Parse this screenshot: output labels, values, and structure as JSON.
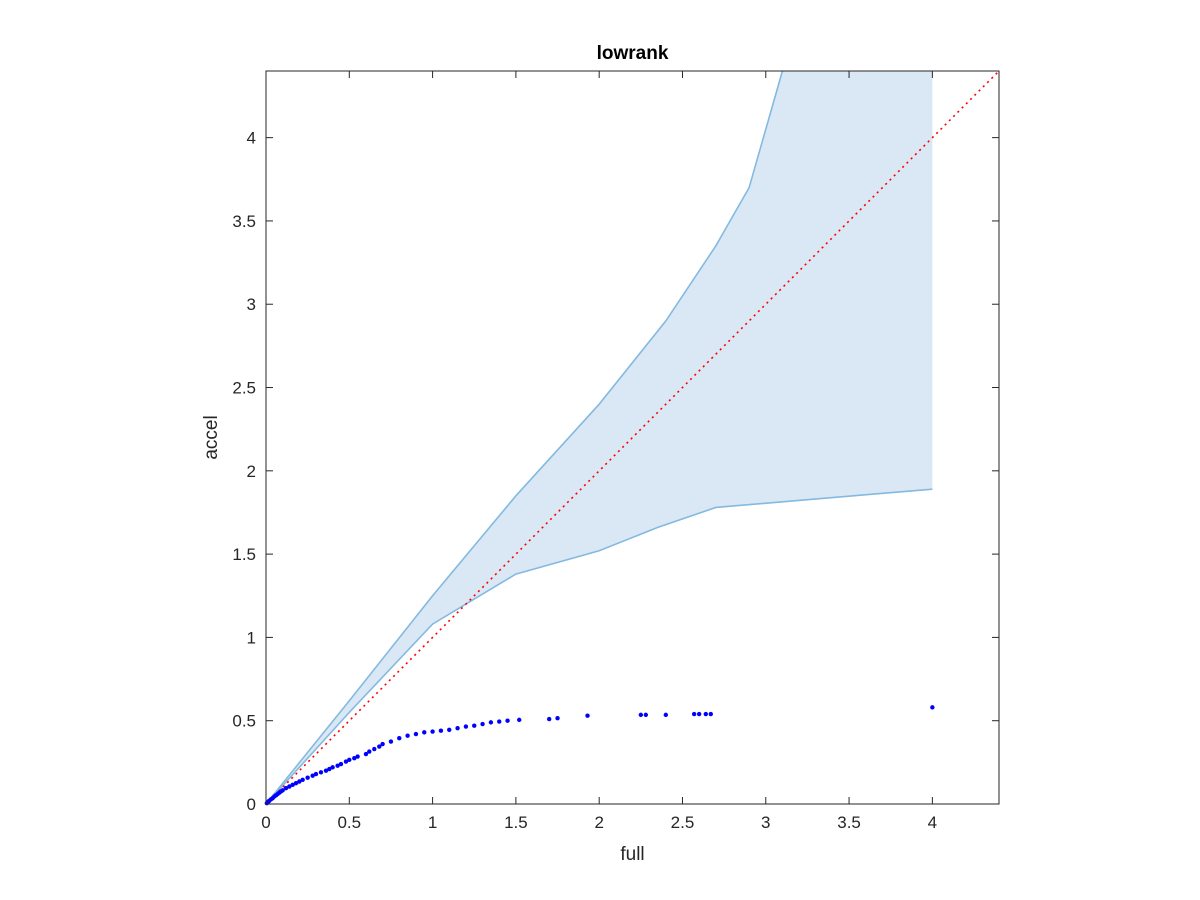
{
  "chart_data": {
    "type": "scatter",
    "title": "lowrank",
    "xlabel": "full",
    "ylabel": "accel",
    "xlim": [
      0,
      4.4
    ],
    "ylim": [
      0,
      4.4
    ],
    "xticks": [
      0,
      0.5,
      1,
      1.5,
      2,
      2.5,
      3,
      3.5,
      4
    ],
    "yticks": [
      0,
      0.5,
      1,
      1.5,
      2,
      2.5,
      3,
      3.5,
      4
    ],
    "grid": false,
    "box": true,
    "band": {
      "color": "#d9e8f4",
      "edge_color": "#84b9e0",
      "upper": [
        [
          0,
          0
        ],
        [
          0.5,
          0.62
        ],
        [
          1,
          1.25
        ],
        [
          1.5,
          1.85
        ],
        [
          2,
          2.4
        ],
        [
          2.4,
          2.9
        ],
        [
          2.7,
          3.35
        ],
        [
          2.9,
          3.7
        ],
        [
          3.1,
          4.4
        ]
      ],
      "lower": [
        [
          0,
          0
        ],
        [
          0.5,
          0.55
        ],
        [
          1,
          1.08
        ],
        [
          1.5,
          1.38
        ],
        [
          2,
          1.52
        ],
        [
          2.35,
          1.66
        ],
        [
          2.7,
          1.78
        ],
        [
          4,
          1.89
        ]
      ],
      "right_edge_x": 4
    },
    "reference_line": {
      "x": [
        0,
        4.4
      ],
      "y": [
        0,
        4.4
      ],
      "color": "#ff0000",
      "style": "dotted"
    },
    "series": [
      {
        "color": "#0000ff",
        "points": [
          [
            0.005,
            0.005
          ],
          [
            0.01,
            0.01
          ],
          [
            0.015,
            0.015
          ],
          [
            0.02,
            0.02
          ],
          [
            0.03,
            0.028
          ],
          [
            0.04,
            0.035
          ],
          [
            0.05,
            0.045
          ],
          [
            0.06,
            0.052
          ],
          [
            0.07,
            0.06
          ],
          [
            0.08,
            0.068
          ],
          [
            0.09,
            0.075
          ],
          [
            0.1,
            0.082
          ],
          [
            0.12,
            0.095
          ],
          [
            0.14,
            0.105
          ],
          [
            0.16,
            0.115
          ],
          [
            0.18,
            0.125
          ],
          [
            0.2,
            0.135
          ],
          [
            0.22,
            0.145
          ],
          [
            0.25,
            0.158
          ],
          [
            0.28,
            0.17
          ],
          [
            0.3,
            0.18
          ],
          [
            0.33,
            0.19
          ],
          [
            0.36,
            0.2
          ],
          [
            0.38,
            0.21
          ],
          [
            0.4,
            0.22
          ],
          [
            0.43,
            0.23
          ],
          [
            0.45,
            0.24
          ],
          [
            0.48,
            0.255
          ],
          [
            0.5,
            0.265
          ],
          [
            0.53,
            0.275
          ],
          [
            0.55,
            0.285
          ],
          [
            0.6,
            0.3
          ],
          [
            0.62,
            0.315
          ],
          [
            0.65,
            0.33
          ],
          [
            0.68,
            0.345
          ],
          [
            0.7,
            0.36
          ],
          [
            0.75,
            0.375
          ],
          [
            0.8,
            0.395
          ],
          [
            0.85,
            0.41
          ],
          [
            0.9,
            0.42
          ],
          [
            0.95,
            0.43
          ],
          [
            1.0,
            0.435
          ],
          [
            1.05,
            0.44
          ],
          [
            1.1,
            0.445
          ],
          [
            1.15,
            0.455
          ],
          [
            1.2,
            0.465
          ],
          [
            1.25,
            0.47
          ],
          [
            1.3,
            0.48
          ],
          [
            1.35,
            0.49
          ],
          [
            1.4,
            0.495
          ],
          [
            1.45,
            0.5
          ],
          [
            1.52,
            0.505
          ],
          [
            1.7,
            0.51
          ],
          [
            1.75,
            0.515
          ],
          [
            1.93,
            0.53
          ],
          [
            2.25,
            0.535
          ],
          [
            2.28,
            0.535
          ],
          [
            2.4,
            0.535
          ],
          [
            2.57,
            0.54
          ],
          [
            2.6,
            0.54
          ],
          [
            2.64,
            0.54
          ],
          [
            2.67,
            0.54
          ],
          [
            4.0,
            0.58
          ]
        ]
      }
    ]
  }
}
